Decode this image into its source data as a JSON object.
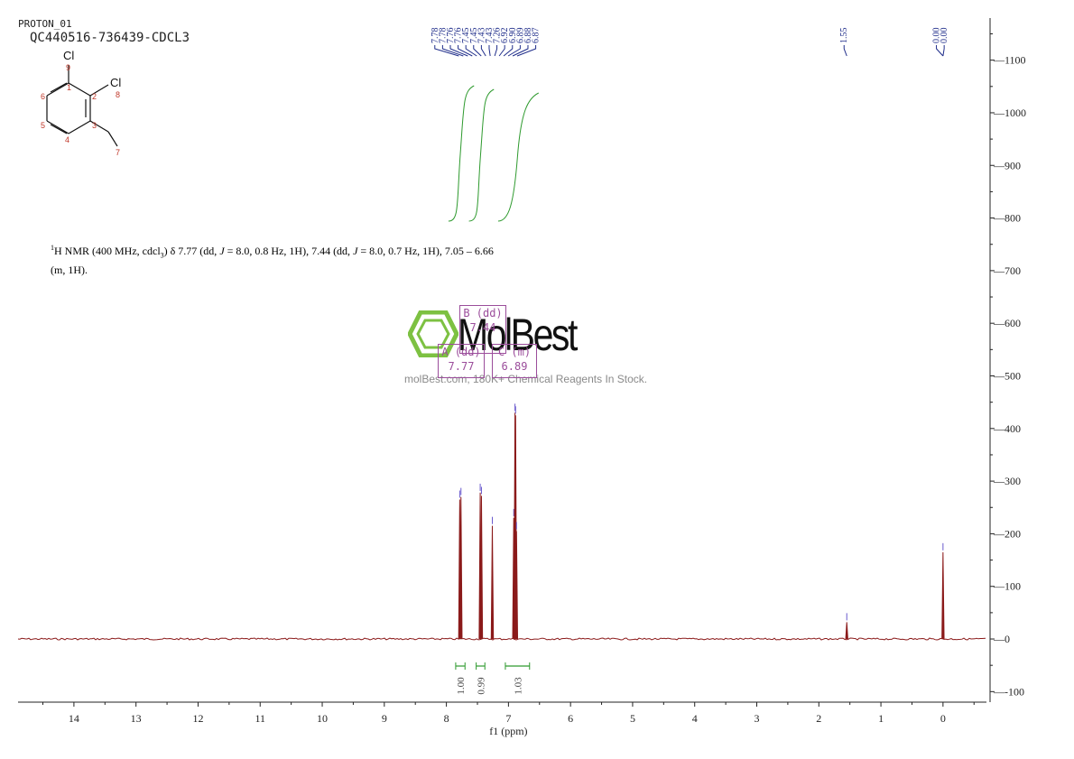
{
  "header": {
    "experiment": "PROTON_01",
    "sample": "QC440516-736439-CDCL3"
  },
  "structure": {
    "atoms": [
      "Cl",
      "Cl"
    ],
    "labels": [
      "9",
      "1",
      "2",
      "8",
      "6",
      "5",
      "4",
      "3",
      "7"
    ]
  },
  "nmr_text": {
    "nucleus": "1",
    "line1_a": "H NMR (400 MHz, cdcl",
    "line1_sub": "3",
    "line1_b": ") δ 7.77 (dd, ",
    "j1": "J",
    "line1_c": " = 8.0, 0.8 Hz, 1H), 7.44 (dd, ",
    "j2": "J",
    "line1_d": " = 8.0, 0.7 Hz, 1H), 7.05 – 6.66",
    "line2": "(m, 1H)."
  },
  "watermark": {
    "brand": "MolBest",
    "tagline": "molBest.com, 180K+ Chemical Reagents In Stock."
  },
  "multiplets": [
    {
      "label": "B (dd)",
      "value": "7.44"
    },
    {
      "label": "A (dd)",
      "value": "7.77"
    },
    {
      "label": "C (m)",
      "value": "6.89"
    }
  ],
  "colors": {
    "spectrum": "#8b1a1a",
    "peak_labels": "#1f2d8a",
    "integrals": "#2e9a2e",
    "multiplet_box": "#9b4d9b",
    "axis": "#222222",
    "logo": "#7dc142"
  },
  "chart_data": {
    "type": "line",
    "title": "",
    "xlabel": "f1 (ppm)",
    "ylabel": "",
    "xlim": [
      14.9,
      -0.7
    ],
    "ylim": [
      -120,
      1180
    ],
    "x_axis_reversed": true,
    "x_ticks": [
      "14",
      "13",
      "12",
      "11",
      "10",
      "9",
      "8",
      "7",
      "6",
      "5",
      "4",
      "3",
      "2",
      "1",
      "0"
    ],
    "y_ticks": [
      "-100",
      "0",
      "100",
      "200",
      "300",
      "400",
      "500",
      "600",
      "700",
      "800",
      "900",
      "1000",
      "1100"
    ],
    "grid": false,
    "y_axis_position": "right",
    "peaks": [
      {
        "ppm": 7.785,
        "height": 265
      },
      {
        "ppm": 7.765,
        "height": 270
      },
      {
        "ppm": 7.455,
        "height": 278
      },
      {
        "ppm": 7.435,
        "height": 272
      },
      {
        "ppm": 7.26,
        "height": 215
      },
      {
        "ppm": 6.915,
        "height": 230
      },
      {
        "ppm": 6.895,
        "height": 430
      },
      {
        "ppm": 6.885,
        "height": 425
      },
      {
        "ppm": 6.87,
        "height": 205
      },
      {
        "ppm": 1.55,
        "height": 32
      },
      {
        "ppm": 0.0,
        "height": 165
      }
    ],
    "peak_labels": [
      {
        "group": "aromatic",
        "labels": [
          "7.78",
          "7.78",
          "7.76",
          "7.76",
          "7.45",
          "7.45",
          "7.43",
          "7.43",
          "7.26",
          "6.92",
          "6.90",
          "6.89",
          "6.88",
          "6.87"
        ]
      },
      {
        "group": "water",
        "labels": [
          "1.55"
        ]
      },
      {
        "group": "tms",
        "labels": [
          "0.00",
          "0.00"
        ]
      }
    ],
    "integrals": [
      {
        "from": 7.85,
        "to": 7.7,
        "value": "1.00"
      },
      {
        "from": 7.52,
        "to": 7.38,
        "value": "0.99"
      },
      {
        "from": 7.05,
        "to": 6.66,
        "value": "1.03"
      }
    ]
  }
}
